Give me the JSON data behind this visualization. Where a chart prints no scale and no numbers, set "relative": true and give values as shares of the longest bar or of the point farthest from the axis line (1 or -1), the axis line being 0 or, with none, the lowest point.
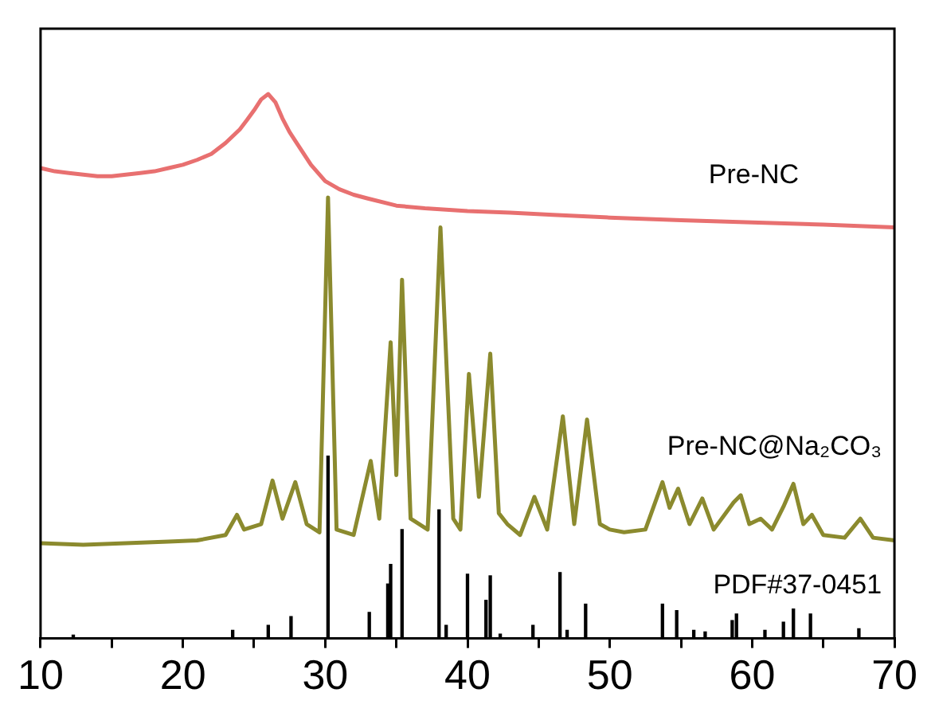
{
  "chart_data": {
    "type": "line",
    "relative": true,
    "grid": false,
    "legend": false,
    "xlim": [
      10,
      70
    ],
    "xticks": [
      10,
      {
        "value": 15,
        "label": null
      },
      20,
      {
        "value": 25,
        "label": null
      },
      30,
      {
        "value": 35,
        "label": null
      },
      40,
      {
        "value": 45,
        "label": null
      },
      50,
      {
        "value": 55,
        "label": null
      },
      60,
      {
        "value": 65,
        "label": null
      },
      70
    ],
    "series": [
      {
        "name": "Pre-NC",
        "color": "#e87070",
        "x": [
          10,
          11,
          12,
          13,
          14,
          15,
          16,
          17,
          18,
          19,
          20,
          21,
          22,
          23,
          24,
          24.5,
          25,
          25.5,
          26,
          26.5,
          27,
          27.5,
          28,
          29,
          30,
          31,
          32,
          33,
          35,
          37,
          40,
          43,
          46,
          50,
          55,
          60,
          65,
          70
        ],
        "values": [
          0.864,
          0.858,
          0.855,
          0.852,
          0.849,
          0.849,
          0.852,
          0.855,
          0.858,
          0.864,
          0.87,
          0.879,
          0.89,
          0.91,
          0.935,
          0.952,
          0.97,
          0.99,
          1.0,
          0.985,
          0.955,
          0.93,
          0.91,
          0.87,
          0.84,
          0.825,
          0.815,
          0.808,
          0.795,
          0.79,
          0.785,
          0.782,
          0.778,
          0.773,
          0.768,
          0.764,
          0.76,
          0.755
        ]
      },
      {
        "name": "Pre-NC@Na₂CO₃",
        "color": "#8b8a2e",
        "x": [
          10,
          13,
          16,
          19,
          21,
          23,
          23.8,
          24.3,
          25.5,
          26.3,
          27,
          27.9,
          28.7,
          29.6,
          30.2,
          30.8,
          32,
          33.2,
          33.8,
          34.6,
          35.0,
          35.4,
          36,
          37.2,
          38.1,
          39,
          39.5,
          40.1,
          40.8,
          41.6,
          42.2,
          42.8,
          43.7,
          44.7,
          45.6,
          46.7,
          47.5,
          48.4,
          49.3,
          50,
          51,
          52.5,
          53.7,
          54.2,
          54.8,
          55.6,
          56.5,
          57.3,
          58.7,
          59.2,
          59.8,
          60.6,
          61.4,
          62.2,
          62.9,
          63.6,
          64.2,
          65,
          66.5,
          67.6,
          68.5,
          70
        ],
        "values": [
          0.175,
          0.172,
          0.175,
          0.178,
          0.18,
          0.19,
          0.227,
          0.2,
          0.21,
          0.29,
          0.22,
          0.287,
          0.21,
          0.195,
          0.81,
          0.2,
          0.19,
          0.326,
          0.22,
          0.544,
          0.3,
          0.659,
          0.22,
          0.2,
          0.755,
          0.22,
          0.2,
          0.486,
          0.26,
          0.523,
          0.23,
          0.21,
          0.19,
          0.26,
          0.2,
          0.408,
          0.21,
          0.402,
          0.21,
          0.2,
          0.195,
          0.2,
          0.287,
          0.24,
          0.275,
          0.21,
          0.257,
          0.2,
          0.25,
          0.263,
          0.21,
          0.22,
          0.2,
          0.242,
          0.284,
          0.21,
          0.227,
          0.19,
          0.185,
          0.22,
          0.185,
          0.18
        ]
      },
      {
        "name": "PDF#37-0451",
        "type": "bar",
        "color": "#000000",
        "x": [
          12.3,
          23.5,
          26.0,
          27.6,
          30.2,
          33.1,
          34.4,
          34.6,
          35.4,
          38.0,
          38.5,
          40.0,
          41.3,
          41.6,
          42.3,
          44.6,
          46.5,
          47.0,
          48.3,
          53.7,
          54.7,
          55.9,
          56.7,
          58.6,
          58.9,
          60.9,
          62.2,
          62.9,
          64.1,
          67.5
        ],
        "values": [
          0.006,
          0.015,
          0.024,
          0.04,
          0.335,
          0.048,
          0.1,
          0.136,
          0.2,
          0.236,
          0.024,
          0.118,
          0.07,
          0.115,
          0.008,
          0.024,
          0.121,
          0.015,
          0.063,
          0.063,
          0.051,
          0.015,
          0.012,
          0.033,
          0.045,
          0.015,
          0.03,
          0.054,
          0.045,
          0.018
        ]
      }
    ]
  }
}
